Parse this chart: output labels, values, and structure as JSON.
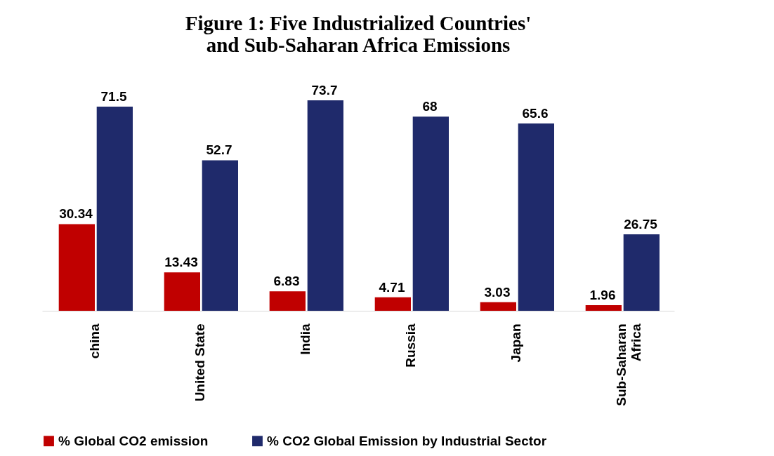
{
  "chart_data": {
    "type": "bar",
    "title": "Figure 1:  Five Industrialized Countries' and Sub-Saharan Africa Emissions",
    "categories": [
      "china",
      "United State",
      "India",
      "Russia",
      "Japan",
      "Sub-Saharan Africa"
    ],
    "series": [
      {
        "name": "% Global CO2 emission",
        "color": "#c00000",
        "values": [
          30.34,
          13.43,
          6.83,
          4.71,
          3.03,
          1.96
        ]
      },
      {
        "name": "% CO2 Global Emission by Industrial Sector",
        "color": "#1f2a6b",
        "values": [
          71.5,
          52.7,
          73.7,
          68,
          65.6,
          26.75
        ]
      }
    ],
    "data_labels": true,
    "legend": "bottom",
    "grid": false
  }
}
